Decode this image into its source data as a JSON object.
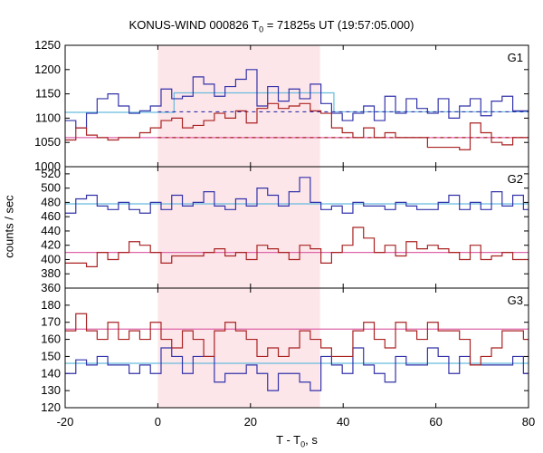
{
  "chart_data": {
    "type": "line",
    "title_parts": {
      "pre": "KONUS-WIND 000826 T",
      "sub": "0",
      "post": " = 71825s UT (19:57:05.000)"
    },
    "xlabel_parts": {
      "pre": "T - T",
      "sub": "0",
      "post": ", s"
    },
    "ylabel": "counts / sec",
    "xlim": [
      -20,
      80
    ],
    "xticks": [
      -20,
      0,
      20,
      40,
      60,
      80
    ],
    "shaded_interval": [
      0,
      35
    ],
    "colors": {
      "blue": "#3333aa",
      "red": "#aa2222",
      "cyan": "#66bbdd",
      "pink": "#dd66aa",
      "shade": "#fde6ea"
    },
    "panels": [
      {
        "label": "G1",
        "ylim": [
          1000,
          1250
        ],
        "yticks": [
          1000,
          1050,
          1100,
          1150,
          1200,
          1250
        ],
        "bin_edges": [
          -20,
          -17.7,
          -15.4,
          -13.1,
          -10.8,
          -8.5,
          -6.2,
          -3.9,
          -1.6,
          0.7,
          3,
          5.3,
          7.6,
          9.9,
          12.2,
          14.5,
          16.8,
          19.1,
          21.4,
          23.7,
          26,
          28.3,
          30.6,
          32.9,
          35.2,
          37.5,
          39.8,
          42.1,
          44.4,
          46.7,
          49,
          51.3,
          53.6,
          55.9,
          58.2,
          60.5,
          62.8,
          65.1,
          67.4,
          69.7,
          72,
          74.3,
          76.6,
          78.9,
          80
        ],
        "series": [
          {
            "color_key": "blue",
            "values": [
              1095,
              1080,
              1110,
              1140,
              1150,
              1125,
              1110,
              1115,
              1125,
              1160,
              1140,
              1145,
              1185,
              1170,
              1145,
              1165,
              1180,
              1200,
              1125,
              1165,
              1135,
              1160,
              1140,
              1170,
              1130,
              1110,
              1095,
              1110,
              1125,
              1095,
              1145,
              1110,
              1140,
              1120,
              1110,
              1140,
              1100,
              1125,
              1140,
              1105,
              1135,
              1145,
              1115,
              1115
            ]
          },
          {
            "color_key": "red",
            "values": [
              1055,
              1080,
              1065,
              1060,
              1055,
              1060,
              1060,
              1070,
              1080,
              1095,
              1100,
              1080,
              1085,
              1095,
              1110,
              1100,
              1115,
              1090,
              1120,
              1130,
              1120,
              1125,
              1130,
              1115,
              1110,
              1080,
              1070,
              1060,
              1080,
              1060,
              1070,
              1060,
              1060,
              1060,
              1040,
              1040,
              1040,
              1035,
              1090,
              1070,
              1050,
              1045,
              1060,
              1060
            ]
          }
        ],
        "levels": [
          {
            "color_key": "cyan",
            "style": "solid",
            "segments": [
              [
                -20,
                3.5,
                1112
              ],
              [
                3.5,
                38,
                1152
              ],
              [
                38,
                80,
                1113
              ]
            ]
          },
          {
            "color_key": "pink",
            "style": "solid",
            "segments": [
              [
                -20,
                80,
                1060
              ]
            ]
          },
          {
            "color_key": "blue",
            "style": "dashed",
            "segments": [
              [
                0,
                80,
                1113
              ]
            ]
          },
          {
            "color_key": "red",
            "style": "dashed",
            "segments": [
              [
                0,
                80,
                1060
              ]
            ]
          }
        ]
      },
      {
        "label": "G2",
        "ylim": [
          360,
          530
        ],
        "yticks": [
          360,
          380,
          400,
          420,
          440,
          460,
          480,
          500,
          520
        ],
        "bin_edges": [
          -20,
          -17.7,
          -15.4,
          -13.1,
          -10.8,
          -8.5,
          -6.2,
          -3.9,
          -1.6,
          0.7,
          3,
          5.3,
          7.6,
          9.9,
          12.2,
          14.5,
          16.8,
          19.1,
          21.4,
          23.7,
          26,
          28.3,
          30.6,
          32.9,
          35.2,
          37.5,
          39.8,
          42.1,
          44.4,
          46.7,
          49,
          51.3,
          53.6,
          55.9,
          58.2,
          60.5,
          62.8,
          65.1,
          67.4,
          69.7,
          72,
          74.3,
          76.6,
          78.9,
          80
        ],
        "series": [
          {
            "color_key": "blue",
            "values": [
              465,
              485,
              490,
              475,
              470,
              480,
              470,
              465,
              480,
              470,
              490,
              475,
              480,
              495,
              475,
              470,
              485,
              475,
              500,
              490,
              475,
              495,
              515,
              480,
              470,
              475,
              465,
              480,
              475,
              475,
              470,
              480,
              475,
              470,
              470,
              480,
              490,
              470,
              480,
              470,
              495,
              475,
              490,
              470
            ]
          },
          {
            "color_key": "red",
            "values": [
              395,
              395,
              390,
              410,
              400,
              410,
              425,
              420,
              410,
              395,
              405,
              405,
              405,
              410,
              415,
              405,
              410,
              400,
              420,
              415,
              410,
              400,
              420,
              415,
              395,
              410,
              420,
              445,
              430,
              410,
              420,
              405,
              425,
              415,
              420,
              415,
              410,
              400,
              420,
              400,
              405,
              410,
              400,
              400
            ]
          }
        ],
        "levels": [
          {
            "color_key": "cyan",
            "style": "solid",
            "segments": [
              [
                -20,
                80,
                478
              ]
            ]
          },
          {
            "color_key": "pink",
            "style": "solid",
            "segments": [
              [
                -20,
                80,
                410
              ]
            ]
          }
        ]
      },
      {
        "label": "G3",
        "ylim": [
          120,
          190
        ],
        "yticks": [
          120,
          130,
          140,
          150,
          160,
          170,
          180
        ],
        "bin_edges": [
          -20,
          -17.7,
          -15.4,
          -13.1,
          -10.8,
          -8.5,
          -6.2,
          -3.9,
          -1.6,
          0.7,
          3,
          5.3,
          7.6,
          9.9,
          12.2,
          14.5,
          16.8,
          19.1,
          21.4,
          23.7,
          26,
          28.3,
          30.6,
          32.9,
          35.2,
          37.5,
          39.8,
          42.1,
          44.4,
          46.7,
          49,
          51.3,
          53.6,
          55.9,
          58.2,
          60.5,
          62.8,
          65.1,
          67.4,
          69.7,
          72,
          74.3,
          76.6,
          78.9,
          80
        ],
        "series": [
          {
            "color_key": "blue",
            "values": [
              140,
              148,
              145,
              150,
              145,
              145,
              140,
              145,
              140,
              155,
              150,
              140,
              150,
              150,
              135,
              140,
              140,
              145,
              140,
              130,
              140,
              140,
              135,
              130,
              150,
              145,
              140,
              155,
              145,
              140,
              135,
              150,
              145,
              145,
              155,
              150,
              140,
              150,
              145,
              145,
              145,
              145,
              150,
              140
            ]
          },
          {
            "color_key": "red",
            "values": [
              165,
              175,
              165,
              160,
              170,
              160,
              165,
              160,
              170,
              160,
              155,
              165,
              160,
              150,
              165,
              170,
              165,
              160,
              150,
              155,
              150,
              155,
              165,
              160,
              155,
              150,
              150,
              165,
              170,
              160,
              155,
              170,
              165,
              160,
              170,
              165,
              165,
              160,
              145,
              150,
              155,
              165,
              165,
              160
            ]
          }
        ],
        "levels": [
          {
            "color_key": "cyan",
            "style": "solid",
            "segments": [
              [
                -20,
                80,
                146
              ]
            ]
          },
          {
            "color_key": "pink",
            "style": "solid",
            "segments": [
              [
                -20,
                80,
                166
              ]
            ]
          }
        ]
      }
    ]
  }
}
